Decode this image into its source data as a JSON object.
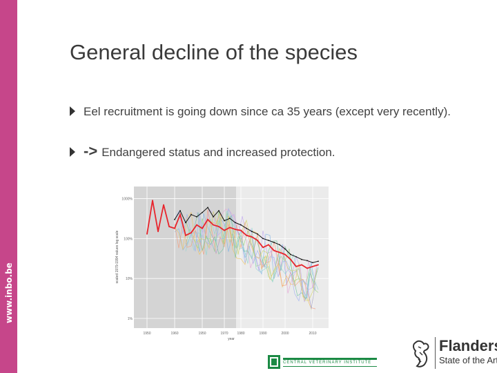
{
  "sidebar": {
    "url": "www.inbo.be",
    "color": "#c6468a"
  },
  "slide": {
    "title": "General decline of the species",
    "bullets": [
      {
        "text": "Eel recruitment is going down since ca 35 years (except very recently)."
      },
      {
        "arrow": "->",
        "text": "Endangered status and increased protection."
      }
    ]
  },
  "chart_data": {
    "type": "line",
    "xlabel": "year",
    "ylabel": "scaled 1979-1994 values log scale",
    "x_ticks": [
      "1950",
      "1960",
      "1950",
      "1970",
      "1980",
      "1990",
      "2000",
      "2010"
    ],
    "y_ticks": [
      "1000%",
      "100%",
      "10%",
      "1%"
    ],
    "shaded_region": "1950-1980",
    "series": [
      {
        "color": "#e8242c",
        "x": [
          1950,
          1952,
          1954,
          1956,
          1958,
          1960,
          1962,
          1964,
          1966,
          1968,
          1970,
          1972,
          1974,
          1976,
          1978,
          1980,
          1982,
          1984,
          1986,
          1988,
          1990,
          1992,
          1994,
          1996,
          1998,
          2000,
          2002,
          2004,
          2006,
          2008,
          2010,
          2012
        ],
        "y": [
          130,
          900,
          150,
          700,
          200,
          180,
          400,
          120,
          140,
          220,
          180,
          300,
          220,
          200,
          160,
          190,
          170,
          160,
          120,
          110,
          90,
          60,
          70,
          50,
          45,
          40,
          30,
          20,
          22,
          18,
          20,
          22
        ]
      },
      {
        "color": "#111111",
        "x": [
          1960,
          1962,
          1964,
          1966,
          1968,
          1970,
          1972,
          1974,
          1976,
          1978,
          1980,
          1982,
          1984,
          1986,
          1988,
          1990,
          1992,
          1994,
          1996,
          1998,
          2000,
          2002,
          2004,
          2006,
          2008,
          2010,
          2012
        ],
        "y": [
          300,
          500,
          250,
          400,
          350,
          450,
          600,
          350,
          500,
          280,
          320,
          250,
          220,
          180,
          150,
          130,
          100,
          90,
          80,
          70,
          55,
          40,
          35,
          30,
          28,
          25,
          27
        ]
      }
    ]
  },
  "logos": {
    "flanders": {
      "name": "Flanders",
      "tagline": "State of the Art"
    },
    "cvi": {
      "name": "CENTRAL VETERINARY INSTITUTE"
    }
  }
}
